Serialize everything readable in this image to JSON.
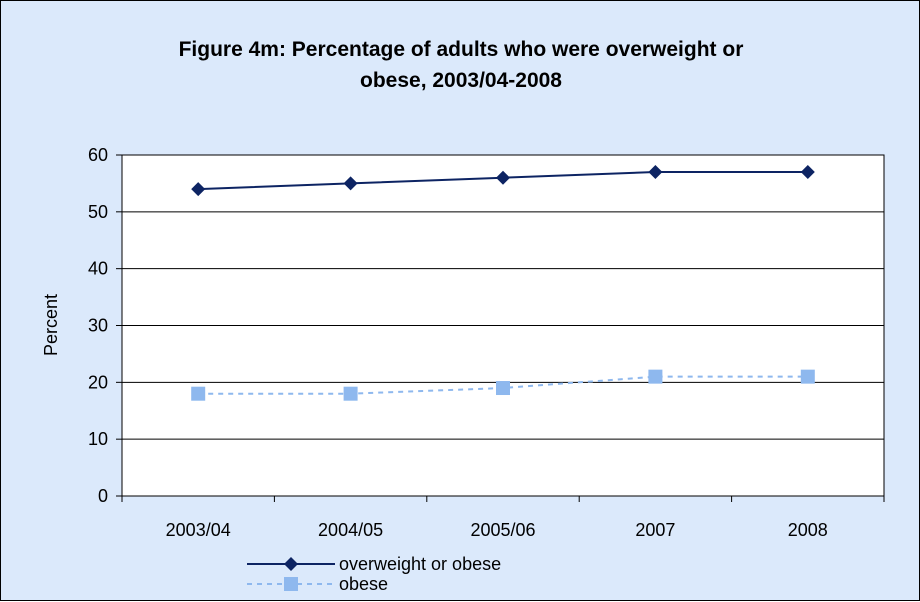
{
  "chart_data": {
    "type": "line",
    "title_lines": [
      "Figure 4m: Percentage of adults who were overweight or",
      "obese, 2003/04-2008"
    ],
    "xlabel": "",
    "ylabel": "Percent",
    "categories": [
      "2003/04",
      "2004/05",
      "2005/06",
      "2007",
      "2008"
    ],
    "ylim": [
      0,
      60
    ],
    "yticks": [
      0,
      10,
      20,
      30,
      40,
      50,
      60
    ],
    "grid": "horizontal",
    "legend_position": "bottom",
    "series": [
      {
        "name": "overweight or obese",
        "values": [
          54,
          55,
          56,
          57,
          57
        ],
        "color": "#0d2463",
        "marker": "diamond",
        "line_style": "solid"
      },
      {
        "name": "obese",
        "values": [
          18,
          18,
          19,
          21,
          21
        ],
        "color": "#8eb8ee",
        "marker": "square",
        "line_style": "dashed"
      }
    ]
  }
}
